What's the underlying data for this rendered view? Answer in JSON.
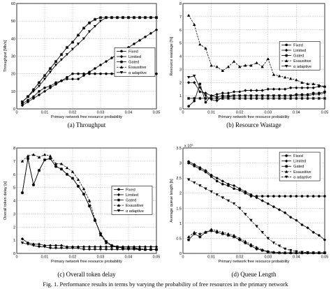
{
  "figure_caption": "Fig. 1.  Performance results in terms by varying the probability of free resources in the primary network",
  "colors": {
    "axis": "#000000",
    "line": "#000000"
  },
  "chart_data": [
    {
      "type": "line",
      "caption": "(a) Throughput",
      "xlabel": "Primary network free resource probability",
      "ylabel": "Throughput [Mb/s]",
      "xlim": [
        0,
        0.05
      ],
      "ylim": [
        0,
        60
      ],
      "xticks": [
        0,
        0.01,
        0.02,
        0.03,
        0.04,
        0.05
      ],
      "yticks": [
        0,
        10,
        20,
        30,
        40,
        50,
        60
      ],
      "legend_position": "bottom-right",
      "x": [
        0.002,
        0.004,
        0.006,
        0.008,
        0.01,
        0.012,
        0.014,
        0.016,
        0.018,
        0.02,
        0.022,
        0.024,
        0.026,
        0.028,
        0.03,
        0.032,
        0.034,
        0.036,
        0.038,
        0.04,
        0.042,
        0.044,
        0.046,
        0.048,
        0.05
      ],
      "series": [
        {
          "name": "Fixed",
          "marker": "circle",
          "dash": false,
          "values": [
            3,
            5,
            7,
            10,
            12,
            13,
            15,
            16,
            18,
            20,
            20,
            20,
            20,
            20,
            20,
            20,
            20,
            20,
            20,
            20,
            20,
            20,
            20,
            20,
            20
          ]
        },
        {
          "name": "Limited",
          "marker": "diamond",
          "dash": false,
          "values": [
            2,
            4,
            6,
            8,
            10,
            12,
            14,
            16,
            17,
            17,
            17,
            19,
            21,
            23,
            25,
            27,
            29,
            31,
            33,
            35,
            37,
            39,
            41,
            43,
            45
          ]
        },
        {
          "name": "Gated",
          "marker": "star",
          "dash": false,
          "values": [
            4,
            7,
            11,
            15,
            19,
            23,
            27,
            31,
            35,
            38,
            42,
            46,
            49,
            51,
            52,
            52,
            52,
            52,
            52,
            52,
            52,
            52,
            52,
            52,
            52
          ]
        },
        {
          "name": "Exausitive",
          "marker": "triangle-up",
          "dash": true,
          "values": [
            4,
            7,
            11,
            15,
            19,
            23,
            27,
            31,
            35,
            38,
            42,
            46,
            49,
            51,
            52,
            52,
            52,
            52,
            52,
            52,
            52,
            52,
            52,
            52,
            52
          ]
        },
        {
          "name": "α adaptive",
          "marker": "triangle-down",
          "dash": false,
          "values": [
            4,
            7,
            10,
            13,
            17,
            21,
            25,
            28,
            31,
            34,
            37,
            40,
            44,
            47,
            50,
            52,
            52,
            52,
            52,
            52,
            52,
            52,
            52,
            52,
            52
          ]
        }
      ]
    },
    {
      "type": "line",
      "caption": "(b) Resource Wastage",
      "xlabel": "Primary network free resource probability",
      "ylabel": "Resource wastage [%]",
      "xlim": [
        0,
        0.05
      ],
      "ylim": [
        0,
        8
      ],
      "xticks": [
        0,
        0.01,
        0.02,
        0.03,
        0.04,
        0.05
      ],
      "yticks": [
        0,
        1,
        2,
        3,
        4,
        5,
        6,
        7,
        8
      ],
      "legend_position": "upper-right",
      "x": [
        0.002,
        0.004,
        0.006,
        0.008,
        0.01,
        0.012,
        0.014,
        0.016,
        0.018,
        0.02,
        0.022,
        0.024,
        0.026,
        0.028,
        0.03,
        0.032,
        0.034,
        0.036,
        0.038,
        0.04,
        0.042,
        0.044,
        0.046,
        0.048,
        0.05
      ],
      "series": [
        {
          "name": "Fixed",
          "marker": "circle",
          "dash": false,
          "values": [
            0.2,
            0.6,
            1.9,
            0.5,
            1.0,
            0.9,
            1.0,
            1.0,
            1.0,
            1.0,
            1.0,
            1.0,
            1.0,
            1.0,
            1.0,
            1.0,
            1.0,
            1.0,
            1.0,
            1.1,
            1.1,
            1.1,
            1.2,
            1.2,
            1.3
          ]
        },
        {
          "name": "Limited",
          "marker": "diamond",
          "dash": false,
          "values": [
            2.0,
            2.0,
            1.3,
            1.2,
            1.0,
            1.1,
            1.2,
            1.2,
            1.3,
            1.3,
            1.4,
            1.4,
            1.4,
            1.4,
            1.5,
            1.5,
            1.5,
            1.5,
            1.6,
            1.6,
            1.6,
            1.6,
            1.6,
            1.7,
            1.7
          ]
        },
        {
          "name": "Gated",
          "marker": "star",
          "dash": false,
          "values": [
            0.8,
            0.8,
            0.8,
            0.8,
            0.8,
            0.8,
            0.8,
            0.8,
            0.8,
            0.8,
            0.8,
            0.8,
            0.8,
            0.8,
            0.8,
            0.8,
            0.8,
            0.8,
            0.8,
            0.8,
            0.8,
            0.8,
            0.8,
            0.8,
            0.8
          ]
        },
        {
          "name": "Exausitive",
          "marker": "triangle-up",
          "dash": true,
          "values": [
            7.1,
            6.4,
            4.9,
            4.6,
            3.3,
            3.2,
            2.9,
            3.2,
            3.6,
            3.2,
            3.3,
            3.3,
            3.5,
            3.2,
            3.8,
            2.6,
            2.5,
            2.4,
            2.3,
            2.2,
            2.0,
            1.9,
            1.9,
            1.8,
            1.7
          ]
        },
        {
          "name": "α adaptive",
          "marker": "triangle-down",
          "dash": false,
          "values": [
            2.4,
            2.5,
            1.6,
            1.0,
            0.7,
            0.6,
            0.9,
            0.9,
            1.0,
            1.0,
            1.0,
            1.0,
            1.0,
            1.0,
            1.0,
            1.0,
            1.0,
            1.0,
            1.0,
            1.0,
            1.0,
            1.0,
            1.1,
            1.1,
            1.2
          ]
        }
      ]
    },
    {
      "type": "line",
      "caption": "(c) Overall token delay",
      "xlabel": "Primary network free resource probability",
      "ylabel": "Overall token delay [s]",
      "xlim": [
        0,
        0.05
      ],
      "ylim": [
        0,
        8
      ],
      "xticks": [
        0,
        0.01,
        0.02,
        0.03,
        0.04,
        0.05
      ],
      "yticks": [
        0,
        1,
        2,
        3,
        4,
        5,
        6,
        7,
        8
      ],
      "legend_position": "upper-right",
      "x": [
        0.002,
        0.004,
        0.006,
        0.008,
        0.01,
        0.012,
        0.014,
        0.016,
        0.018,
        0.02,
        0.022,
        0.024,
        0.026,
        0.028,
        0.03,
        0.032,
        0.034,
        0.036,
        0.038,
        0.04,
        0.042,
        0.044,
        0.046,
        0.048,
        0.05
      ],
      "series": [
        {
          "name": "Fixed",
          "marker": "circle",
          "dash": false,
          "values": [
            4.6,
            7.2,
            5.2,
            6.3,
            7.1,
            7.2,
            6.6,
            6.4,
            6.0,
            5.7,
            5.1,
            4.5,
            3.6,
            2.5,
            1.5,
            0.9,
            0.6,
            0.5,
            0.4,
            0.4,
            0.4,
            0.3,
            0.3,
            0.3,
            0.3
          ]
        },
        {
          "name": "Limited",
          "marker": "diamond",
          "dash": false,
          "values": [
            1.1,
            0.8,
            0.7,
            0.7,
            0.6,
            0.6,
            0.6,
            0.6,
            0.5,
            0.5,
            0.5,
            0.5,
            0.5,
            0.5,
            0.5,
            0.5,
            0.5,
            0.5,
            0.5,
            0.5,
            0.5,
            0.5,
            0.5,
            0.5,
            0.5
          ]
        },
        {
          "name": "Gated",
          "marker": "star",
          "dash": false,
          "values": [
            4.6,
            7.2,
            5.2,
            6.3,
            7.1,
            7.2,
            6.6,
            6.4,
            6.0,
            5.7,
            5.1,
            4.5,
            3.6,
            2.5,
            1.5,
            0.9,
            0.6,
            0.5,
            0.4,
            0.4,
            0.4,
            0.3,
            0.3,
            0.3,
            0.3
          ]
        },
        {
          "name": "Exausitive",
          "marker": "triangle-up",
          "dash": true,
          "values": [
            7.0,
            7.4,
            7.5,
            7.3,
            7.5,
            7.4,
            6.8,
            6.8,
            6.5,
            6.2,
            5.6,
            4.9,
            4.0,
            2.6,
            1.4,
            0.8,
            0.6,
            0.5,
            0.4,
            0.4,
            0.4,
            0.4,
            0.3,
            0.3,
            0.3
          ]
        },
        {
          "name": "α adaptive",
          "marker": "triangle-down",
          "dash": false,
          "values": [
            0.8,
            0.7,
            0.6,
            0.5,
            0.5,
            0.4,
            0.4,
            0.4,
            0.4,
            0.4,
            0.4,
            0.3,
            0.3,
            0.3,
            0.3,
            0.3,
            0.3,
            0.3,
            0.3,
            0.3,
            0.3,
            0.3,
            0.3,
            0.3,
            0.3
          ]
        }
      ]
    },
    {
      "type": "line",
      "caption": "(d) Queue Length",
      "xlabel": "Primary network free resource probability",
      "ylabel": "Average queue length [b]",
      "exponent_label": "x 10⁵",
      "xlim": [
        0,
        0.05
      ],
      "ylim": [
        0,
        3.5
      ],
      "xticks": [
        0,
        0.01,
        0.02,
        0.03,
        0.04,
        0.05
      ],
      "yticks": [
        0,
        0.5,
        1,
        1.5,
        2,
        2.5,
        3,
        3.5
      ],
      "legend_position": "upper-right",
      "x": [
        0.002,
        0.004,
        0.006,
        0.008,
        0.01,
        0.012,
        0.014,
        0.016,
        0.018,
        0.02,
        0.022,
        0.024,
        0.026,
        0.028,
        0.03,
        0.032,
        0.034,
        0.036,
        0.038,
        0.04,
        0.042,
        0.044,
        0.046,
        0.048,
        0.05
      ],
      "series": [
        {
          "name": "Fixed",
          "marker": "circle",
          "dash": false,
          "values": [
            3.0,
            2.9,
            2.8,
            2.7,
            2.55,
            2.4,
            2.3,
            2.25,
            2.15,
            2.1,
            2.0,
            1.9,
            1.9,
            1.9,
            1.9,
            1.9,
            1.9,
            1.9,
            1.9,
            1.9,
            1.9,
            1.9,
            1.9,
            1.9,
            1.9
          ]
        },
        {
          "name": "Limited",
          "marker": "diamond",
          "dash": false,
          "values": [
            3.05,
            2.95,
            2.85,
            2.75,
            2.6,
            2.5,
            2.4,
            2.3,
            2.25,
            2.15,
            2.05,
            1.95,
            1.85,
            1.75,
            1.65,
            1.55,
            1.45,
            1.35,
            1.2,
            1.1,
            0.95,
            0.85,
            0.7,
            0.6,
            0.45
          ]
        },
        {
          "name": "Gated",
          "marker": "star",
          "dash": false,
          "values": [
            0.45,
            0.65,
            0.55,
            0.7,
            0.75,
            0.7,
            0.65,
            0.6,
            0.55,
            0.45,
            0.35,
            0.25,
            0.15,
            0.1,
            0.05,
            0.03,
            0.02,
            0.02,
            0.02,
            0.02,
            0.02,
            0.02,
            0.02,
            0.02,
            0.02
          ]
        },
        {
          "name": "Exausitive",
          "marker": "triangle-up",
          "dash": true,
          "values": [
            0.55,
            0.7,
            0.65,
            0.7,
            0.8,
            0.75,
            0.7,
            0.65,
            0.6,
            0.5,
            0.4,
            0.3,
            0.2,
            0.12,
            0.07,
            0.04,
            0.03,
            0.02,
            0.02,
            0.02,
            0.02,
            0.02,
            0.02,
            0.02,
            0.02
          ]
        },
        {
          "name": "α adaptive",
          "marker": "triangle-down",
          "dash": true,
          "values": [
            2.45,
            2.35,
            2.25,
            2.15,
            2.05,
            1.95,
            1.85,
            1.75,
            1.65,
            1.5,
            1.3,
            1.1,
            0.9,
            0.7,
            0.5,
            0.35,
            0.25,
            0.15,
            0.1,
            0.06,
            0.04,
            0.03,
            0.02,
            0.02,
            0.02
          ]
        }
      ]
    }
  ]
}
